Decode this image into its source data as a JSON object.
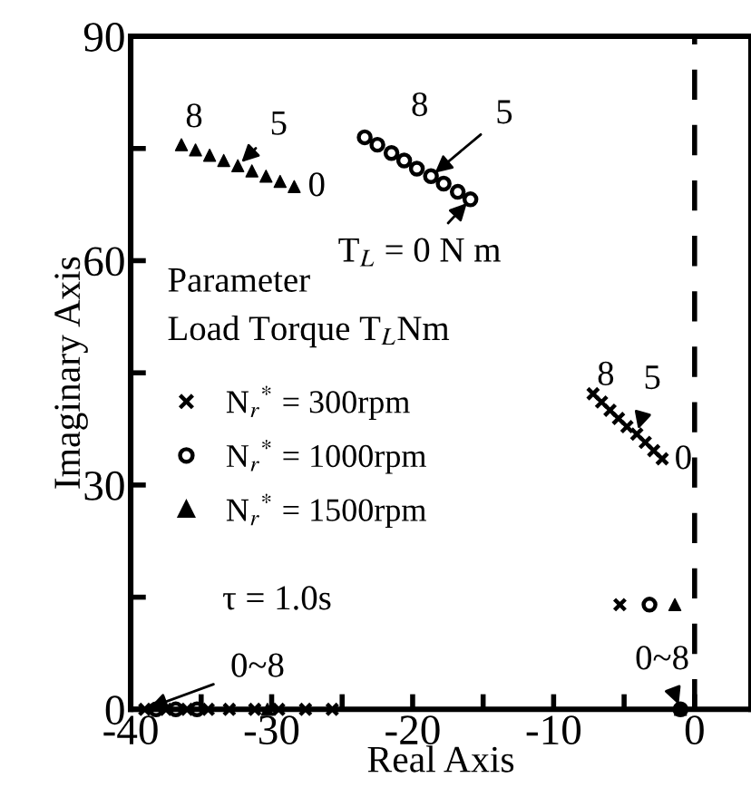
{
  "chart_data": {
    "type": "scatter",
    "xlabel": "Real Axis",
    "ylabel": "Imaginary Axis",
    "xlim": [
      -40,
      4
    ],
    "ylim": [
      0,
      90
    ],
    "xticks": [
      -40,
      {
        "value": -35,
        "label": null
      },
      -30,
      {
        "value": -25,
        "label": null
      },
      -20,
      {
        "value": -15,
        "label": null
      },
      -10,
      {
        "value": -5,
        "label": null
      },
      0
    ],
    "yticks": [
      0,
      {
        "value": 15,
        "label": null
      },
      30,
      {
        "value": 45,
        "label": null
      },
      60,
      {
        "value": 75,
        "label": null
      },
      90
    ],
    "grid": false,
    "legend": "left",
    "ref_lines": [
      {
        "axis": "x",
        "value": 0,
        "line_style": "dashed",
        "color": "#000000"
      }
    ],
    "series": [
      {
        "name": "N$_{r}$$^{*}$ = 300rpm",
        "color": "#000000",
        "marker": "cross",
        "x": [
          -7.2,
          -6.6,
          -6.0,
          -5.4,
          -4.8,
          -4.1,
          -3.5,
          -2.9,
          -2.3,
          -5.3,
          -39,
          -37.5,
          -36,
          -34.5,
          -33,
          -31.2,
          -29.5,
          -27.6,
          -25.7,
          -1.0
        ],
        "values": [
          42.2,
          41.1,
          40.0,
          38.9,
          37.8,
          36.8,
          35.7,
          34.6,
          33.5,
          14,
          0,
          0,
          0,
          0,
          0,
          0,
          0,
          0,
          0,
          0
        ]
      },
      {
        "name": "N$_{r}$$^{*}$ = 1000rpm",
        "color": "#000000",
        "marker": "circle",
        "x": [
          -23.4,
          -22.5,
          -21.5,
          -20.6,
          -19.7,
          -18.7,
          -17.8,
          -16.8,
          -15.9,
          -3.2,
          -38.2,
          -36.8,
          -35.3,
          -1.0
        ],
        "values": [
          76.5,
          75.5,
          74.4,
          73.4,
          72.3,
          71.3,
          70.3,
          69.2,
          68.2,
          14,
          0,
          0,
          0,
          0
        ]
      },
      {
        "name": "N$_{r}$$^{*}$ = 1500rpm",
        "color": "#000000",
        "marker": "triangle",
        "x": [
          -36.4,
          -35.4,
          -34.4,
          -33.4,
          -32.4,
          -31.4,
          -30.4,
          -29.4,
          -28.4,
          -1.4,
          -30.3,
          -1.0
        ],
        "values": [
          75.5,
          74.8,
          74.1,
          73.4,
          72.7,
          72.0,
          71.3,
          70.6,
          69.9,
          14,
          0,
          0
        ]
      }
    ],
    "annotations": [
      {
        "text": "8",
        "x": -36.4,
        "y": 75.5
      },
      {
        "text": "5",
        "x": -32.4,
        "y": 72.7
      },
      {
        "text": "0",
        "x": -28.4,
        "y": 69.9
      },
      {
        "text": "8",
        "x": -23.4,
        "y": 76.5
      },
      {
        "text": "5",
        "x": -18.7,
        "y": 71.3
      },
      {
        "text": "T$_{L}$ = 0 N m",
        "x": -15.9,
        "y": 68.2
      },
      {
        "text": "8",
        "x": -7.2,
        "y": 42.2
      },
      {
        "text": "5",
        "x": -4.1,
        "y": 36.8
      },
      {
        "text": "0",
        "x": -2.3,
        "y": 33.5
      },
      {
        "text": "0~8",
        "x": -39,
        "y": 0
      },
      {
        "text": "0~8",
        "x": -1.0,
        "y": 0
      },
      "Parameter",
      "Load Torque T$_{L}$Nm",
      "τ = 1.0s"
    ]
  }
}
